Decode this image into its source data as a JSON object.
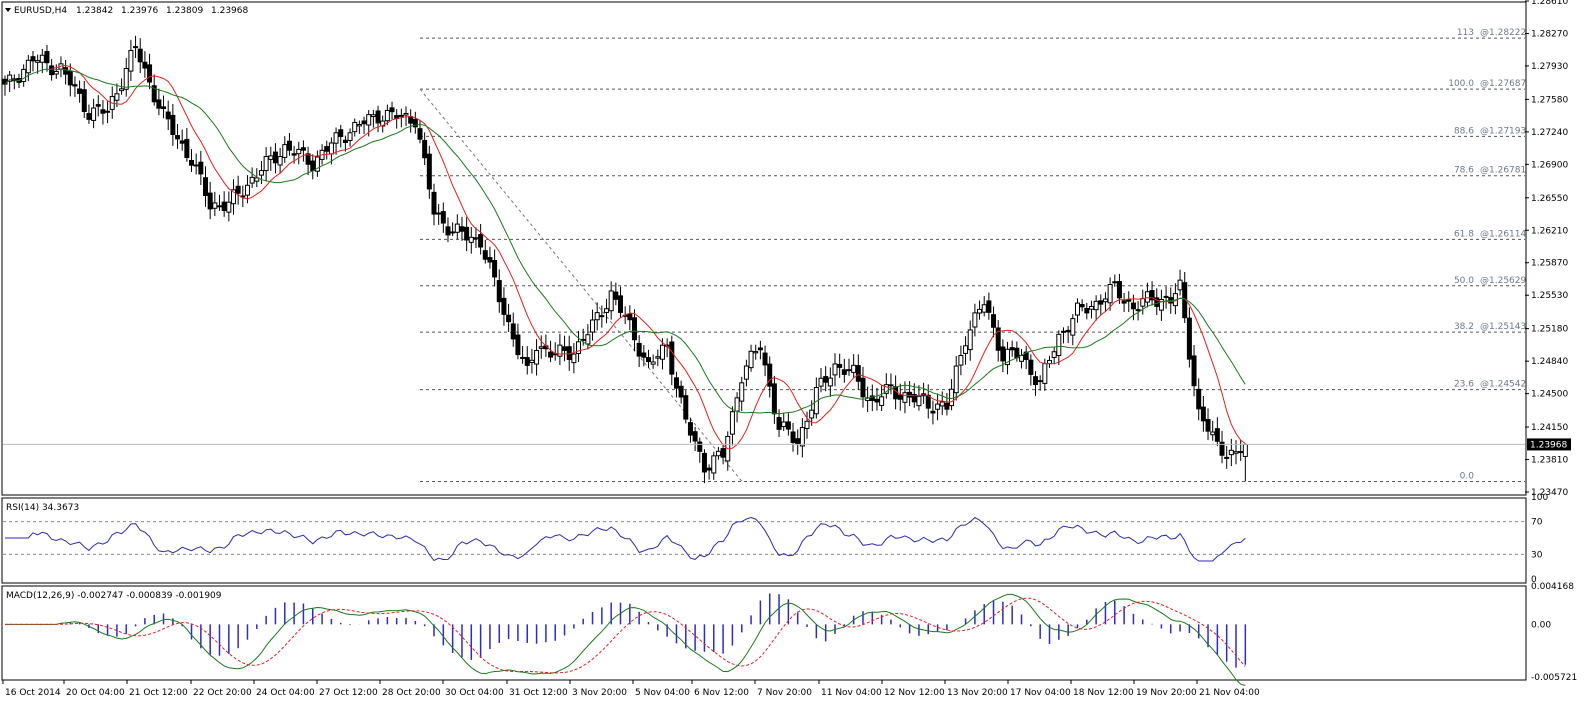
{
  "chart_data": [
    {
      "type": "candlestick",
      "header": {
        "symbol": "EURUSD,H4",
        "open": "1.23842",
        "high": "1.23976",
        "low": "1.23809",
        "close": "1.23968"
      },
      "y_ticks": [
        "1.28610",
        "1.28270",
        "1.27930",
        "1.27580",
        "1.27240",
        "1.26900",
        "1.26550",
        "1.26210",
        "1.25870",
        "1.25530",
        "1.25180",
        "1.24840",
        "1.24500",
        "1.24150",
        "1.23810",
        "1.23470"
      ],
      "ylim": [
        1.2347,
        1.2861
      ],
      "current_price": "1.23968",
      "x_ticks": [
        "16 Oct 2014",
        "20 Oct 04:00",
        "21 Oct 12:00",
        "22 Oct 20:00",
        "24 Oct 04:00",
        "27 Oct 12:00",
        "28 Oct 20:00",
        "30 Oct 04:00",
        "31 Oct 12:00",
        "3 Nov 20:00",
        "5 Nov 04:00",
        "6 Nov 12:00",
        "7 Nov 20:00",
        "11 Nov 04:00",
        "12 Nov 12:00",
        "13 Nov 20:00",
        "17 Nov 04:00",
        "18 Nov 12:00",
        "19 Nov 20:00",
        "21 Nov 04:00"
      ],
      "fibonacci_levels": [
        {
          "label": "113",
          "price": "1.28222",
          "value": 1.28222
        },
        {
          "label": "100.0",
          "price": "1.27687",
          "value": 1.27687
        },
        {
          "label": "88.6",
          "price": "1.27193",
          "value": 1.27193
        },
        {
          "label": "78.6",
          "price": "1.26781",
          "value": 1.26781
        },
        {
          "label": "61.8",
          "price": "1.26114",
          "value": 1.26114
        },
        {
          "label": "50.0",
          "price": "1.25629",
          "value": 1.25629
        },
        {
          "label": "38.2",
          "price": "1.25143",
          "value": 1.25143
        },
        {
          "label": "23.6",
          "price": "1.24542",
          "value": 1.24542
        },
        {
          "label": "0.0",
          "price": "",
          "value": 1.2358
        }
      ],
      "moving_averages": [
        {
          "color": "#e8201c"
        },
        {
          "color": "#1a7a1a"
        }
      ]
    },
    {
      "type": "line",
      "title": "RSI(14) 34.3673",
      "y_ticks": [
        "100",
        "70",
        "30",
        "0"
      ],
      "ylim": [
        0,
        100
      ],
      "levels": [
        70,
        30
      ],
      "color": "#2b2bb0"
    },
    {
      "type": "bar",
      "title": "MACD(12,26,9) -0.002747 -0.000839 -0.001909",
      "y_ticks": [
        "0.004168",
        "0.00",
        "-0.005721"
      ],
      "ylim": [
        -0.005721,
        0.004168
      ],
      "colors": {
        "histogram": "#2b2bc8",
        "main": "#1a7a1a",
        "signal": "#e8201c"
      }
    }
  ]
}
